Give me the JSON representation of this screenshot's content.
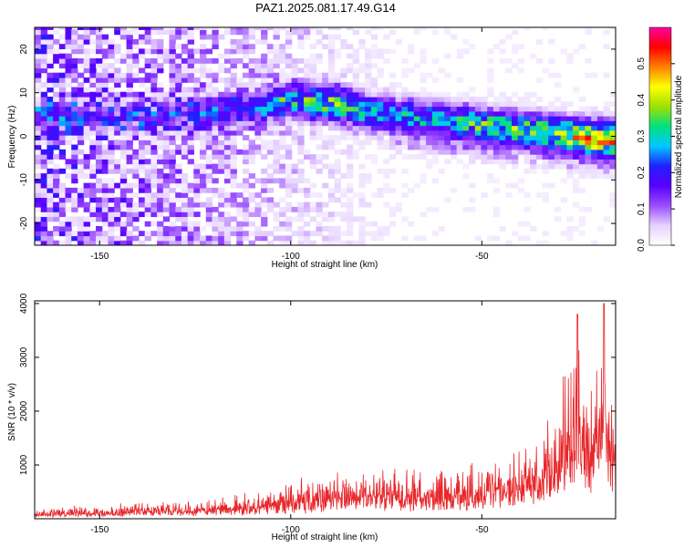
{
  "title": "PAZ1.2025.081.17.49.G14",
  "chart_data": [
    {
      "type": "heatmap",
      "xlabel": "Height of straight line (km)",
      "ylabel": "Frequency (Hz)",
      "xlim": [
        -167,
        -15
      ],
      "ylim": [
        -25,
        25
      ],
      "xticks": [
        -150,
        -100,
        -50
      ],
      "xtick_labels": [
        "-150",
        "-100",
        "-50"
      ],
      "yticks": [
        -20,
        -10,
        0,
        10,
        20
      ],
      "ytick_labels": [
        "-20",
        "-10",
        "0",
        "10",
        "20"
      ],
      "colorbar": {
        "label": "Normalized spectral amplitude",
        "range": [
          0,
          0.6
        ],
        "ticks": [
          0.0,
          0.1,
          0.2,
          0.3,
          0.4,
          0.5
        ],
        "tick_labels": [
          "0.0",
          "0.1",
          "0.2",
          "0.3",
          "0.4",
          "0.5"
        ],
        "colors": [
          "#ffffff",
          "#e6d2ff",
          "#9a4dff",
          "#5a00ff",
          "#2020ff",
          "#00c8ff",
          "#00e080",
          "#a0e000",
          "#ffff00",
          "#ff8000",
          "#ff0000",
          "#ff00a0"
        ]
      },
      "ridge": {
        "x": [
          -140,
          -130,
          -120,
          -110,
          -100,
          -90,
          -80,
          -70,
          -60,
          -50,
          -40,
          -30,
          -20,
          -15
        ],
        "frequency": [
          4,
          4.5,
          5,
          6,
          8,
          7,
          5,
          4,
          3,
          2,
          1,
          0,
          -1,
          -1.5
        ],
        "amplitude": [
          0.12,
          0.14,
          0.16,
          0.2,
          0.3,
          0.36,
          0.3,
          0.3,
          0.32,
          0.36,
          0.38,
          0.42,
          0.55,
          0.5
        ]
      }
    },
    {
      "type": "line",
      "xlabel": "Height of straight line (km)",
      "ylabel": "SNR (10 * v/v)",
      "xlim": [
        -167,
        -15
      ],
      "ylim": [
        0,
        4050
      ],
      "xticks": [
        -150,
        -100,
        -50
      ],
      "xtick_labels": [
        "-150",
        "-100",
        "-50"
      ],
      "yticks": [
        1000,
        2000,
        3000,
        4000
      ],
      "ytick_labels": [
        "1000",
        "2000",
        "3000",
        "4000"
      ],
      "series": [
        {
          "color": "#e8262a",
          "envelope": {
            "x": [
              -167,
              -150,
              -140,
              -130,
              -120,
              -110,
              -100,
              -90,
              -80,
              -70,
              -60,
              -55,
              -50,
              -45,
              -40,
              -35,
              -30,
              -25,
              -20,
              -18,
              -16,
              -15
            ],
            "mean": [
              80,
              110,
              140,
              160,
              180,
              220,
              280,
              350,
              420,
              420,
              400,
              420,
              480,
              520,
              600,
              800,
              1200,
              1600,
              1500,
              2000,
              1400,
              1200
            ],
            "peak": [
              220,
              280,
              350,
              380,
              420,
              520,
              800,
              900,
              1000,
              1000,
              1150,
              1100,
              1150,
              1100,
              1400,
              1700,
              2500,
              3800,
              3000,
              4000,
              2600,
              2000
            ]
          }
        }
      ]
    }
  ]
}
